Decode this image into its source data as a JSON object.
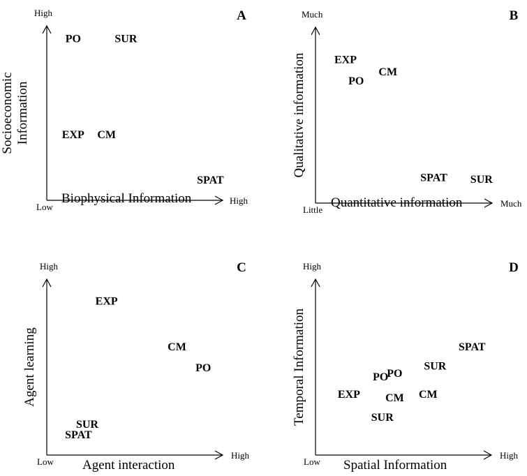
{
  "panels": [
    {
      "id": "A",
      "letter": "A",
      "x_axis_title": "Biophysical Information",
      "y_axis_title": [
        "Socioeconomic",
        "Information"
      ],
      "y_high": "High",
      "origin": "Low",
      "x_high": "High",
      "points": [
        {
          "label": "PO",
          "x": 0.15,
          "y": 0.92
        },
        {
          "label": "SUR",
          "x": 0.45,
          "y": 0.92
        },
        {
          "label": "EXP",
          "x": 0.15,
          "y": 0.37
        },
        {
          "label": "CM",
          "x": 0.34,
          "y": 0.37
        },
        {
          "label": "SPAT",
          "x": 0.93,
          "y": 0.11
        }
      ]
    },
    {
      "id": "B",
      "letter": "B",
      "x_axis_title": "Quantitative information",
      "y_axis_title": [
        "Qualitative information"
      ],
      "y_high": "Much",
      "origin": "Little",
      "x_high": "Much",
      "points": [
        {
          "label": "EXP",
          "x": 0.17,
          "y": 0.81
        },
        {
          "label": "CM",
          "x": 0.41,
          "y": 0.74
        },
        {
          "label": "PO",
          "x": 0.23,
          "y": 0.69
        },
        {
          "label": "SPAT",
          "x": 0.67,
          "y": 0.14
        },
        {
          "label": "SUR",
          "x": 0.94,
          "y": 0.13
        }
      ]
    },
    {
      "id": "C",
      "letter": "C",
      "x_axis_title": "Agent interaction",
      "y_axis_title": [
        "Agent learning"
      ],
      "y_high": "High",
      "origin": "Low",
      "x_high": "High",
      "points": [
        {
          "label": "EXP",
          "x": 0.34,
          "y": 0.87
        },
        {
          "label": "CM",
          "x": 0.74,
          "y": 0.61
        },
        {
          "label": "PO",
          "x": 0.89,
          "y": 0.49
        },
        {
          "label": "SUR",
          "x": 0.23,
          "y": 0.17
        },
        {
          "label": "SPAT",
          "x": 0.18,
          "y": 0.11
        }
      ]
    },
    {
      "id": "D",
      "letter": "D",
      "x_axis_title": "Spatial Information",
      "y_axis_title": [
        "Temporal Information"
      ],
      "y_high": "High",
      "origin": "Low",
      "x_high": "High",
      "points": [
        {
          "label": "SPAT",
          "x": 0.89,
          "y": 0.61
        },
        {
          "label": "SUR",
          "x": 0.68,
          "y": 0.5
        },
        {
          "label": "PO",
          "x": 0.37,
          "y": 0.44
        },
        {
          "label": "PO",
          "x": 0.45,
          "y": 0.46
        },
        {
          "label": "EXP",
          "x": 0.19,
          "y": 0.34
        },
        {
          "label": "CM",
          "x": 0.45,
          "y": 0.32
        },
        {
          "label": "CM",
          "x": 0.64,
          "y": 0.34
        },
        {
          "label": "SUR",
          "x": 0.38,
          "y": 0.21
        }
      ]
    }
  ]
}
